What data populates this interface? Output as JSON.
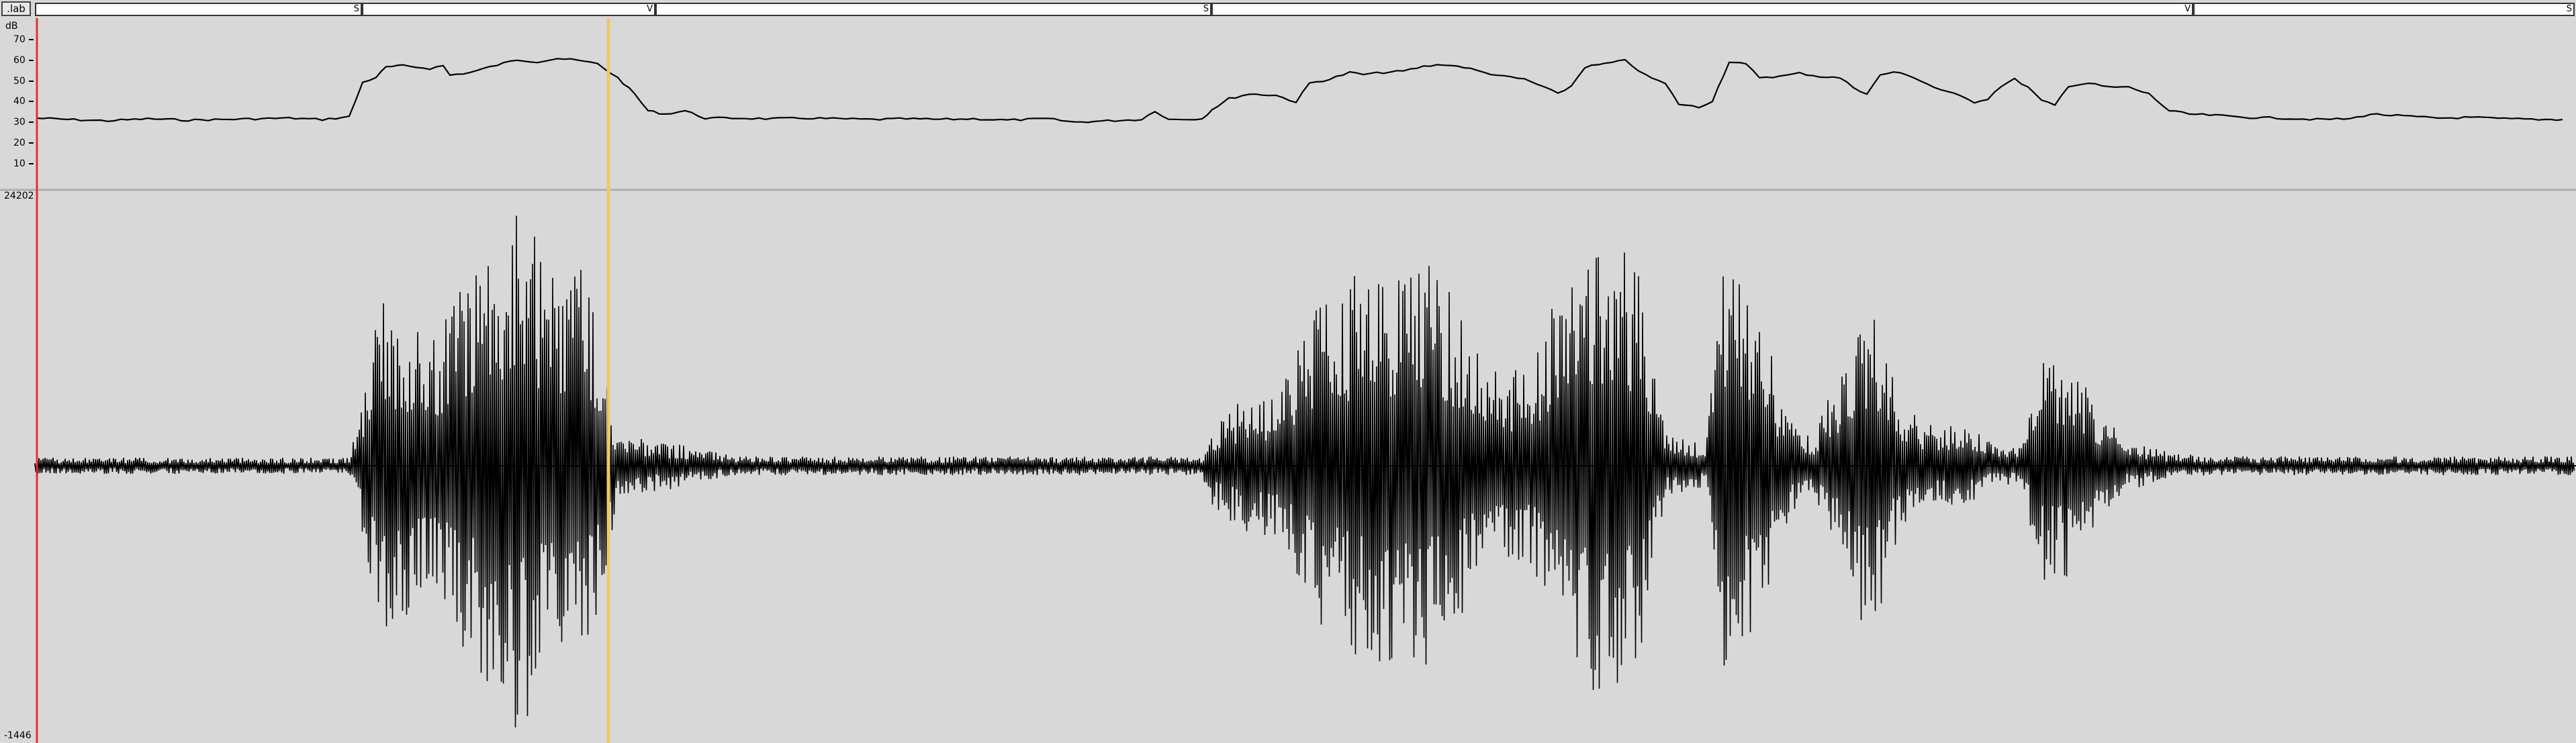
{
  "label_track": {
    "lab_button": ".lab",
    "segments": [
      {
        "label": "S"
      },
      {
        "label": "V"
      },
      {
        "label": "S"
      },
      {
        "label": "V"
      },
      {
        "label": "S"
      }
    ]
  },
  "energy_panel": {
    "unit": "dB",
    "ticks": [
      "70",
      "60",
      "50",
      "40",
      "30",
      "20",
      "10"
    ]
  },
  "waveform_panel": {
    "max_label": "24202",
    "min_label": "-1446"
  },
  "colors": {
    "background": "#d8d8d8",
    "cursor_left": "#e03030",
    "cursor_selection": "#f0c860",
    "trace": "#000000"
  }
}
